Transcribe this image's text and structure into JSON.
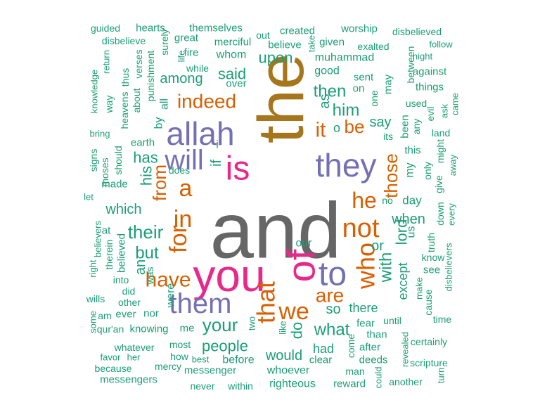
{
  "chart_data": {
    "type": "wordcloud",
    "palette": {
      "teal": "#1b9e77",
      "orange": "#d95f02",
      "purple": "#7570b3",
      "pink": "#e7298a",
      "gold": "#a6761d",
      "gray": "#666666"
    },
    "words": [
      {
        "text": "and",
        "color": "gray"
      },
      {
        "text": "the",
        "color": "gold"
      },
      {
        "text": "you",
        "color": "pink"
      },
      {
        "text": "is",
        "color": "pink"
      },
      {
        "text": "allah",
        "color": "purple"
      },
      {
        "text": "they",
        "color": "purple"
      },
      {
        "text": "of",
        "color": "pink"
      },
      {
        "text": "to",
        "color": "purple"
      },
      {
        "text": "will",
        "color": "purple"
      },
      {
        "text": "them",
        "color": "purple"
      },
      {
        "text": "not",
        "color": "orange"
      },
      {
        "text": "that",
        "color": "orange"
      },
      {
        "text": "we",
        "color": "orange"
      },
      {
        "text": "he",
        "color": "orange"
      },
      {
        "text": "who",
        "color": "orange"
      },
      {
        "text": "in",
        "color": "orange"
      },
      {
        "text": "for",
        "color": "orange"
      },
      {
        "text": "a",
        "color": "orange"
      },
      {
        "text": "have",
        "color": "orange"
      },
      {
        "text": "indeed",
        "color": "orange"
      },
      {
        "text": "it",
        "color": "orange"
      },
      {
        "text": "be",
        "color": "orange"
      },
      {
        "text": "are",
        "color": "orange"
      },
      {
        "text": "from",
        "color": "orange"
      },
      {
        "text": "those",
        "color": "orange"
      },
      {
        "text": "their",
        "color": "teal"
      },
      {
        "text": "your",
        "color": "teal"
      },
      {
        "text": "what",
        "color": "teal"
      },
      {
        "text": "people",
        "color": "teal"
      },
      {
        "text": "with",
        "color": "teal"
      },
      {
        "text": "him",
        "color": "teal"
      },
      {
        "text": "then",
        "color": "teal"
      },
      {
        "text": "but",
        "color": "teal"
      },
      {
        "text": "which",
        "color": "teal"
      },
      {
        "text": "has",
        "color": "teal"
      },
      {
        "text": "his",
        "color": "teal"
      },
      {
        "text": "said",
        "color": "teal"
      },
      {
        "text": "upon",
        "color": "teal"
      },
      {
        "text": "among",
        "color": "teal"
      },
      {
        "text": "so",
        "color": "teal"
      },
      {
        "text": "there",
        "color": "teal"
      },
      {
        "text": "lord",
        "color": "teal"
      },
      {
        "text": "when",
        "color": "teal"
      },
      {
        "text": "would",
        "color": "teal"
      },
      {
        "text": "had",
        "color": "teal"
      },
      {
        "text": "say",
        "color": "teal"
      },
      {
        "text": "if",
        "color": "teal"
      },
      {
        "text": "as",
        "color": "teal"
      },
      {
        "text": "or",
        "color": "teal"
      },
      {
        "text": "do",
        "color": "teal"
      },
      {
        "text": "an",
        "color": "teal"
      },
      {
        "text": "except",
        "color": "teal"
      },
      {
        "text": "guided",
        "color": "teal"
      },
      {
        "text": "hearts",
        "color": "teal"
      },
      {
        "text": "themselves",
        "color": "teal"
      },
      {
        "text": "created",
        "color": "teal"
      },
      {
        "text": "worship",
        "color": "teal"
      },
      {
        "text": "disbelieve",
        "color": "teal"
      },
      {
        "text": "great",
        "color": "teal"
      },
      {
        "text": "merciful",
        "color": "teal"
      },
      {
        "text": "out",
        "color": "teal"
      },
      {
        "text": "believe",
        "color": "teal"
      },
      {
        "text": "given",
        "color": "teal"
      },
      {
        "text": "exalted",
        "color": "teal"
      },
      {
        "text": "disbelieved",
        "color": "teal"
      },
      {
        "text": "follow",
        "color": "teal"
      },
      {
        "text": "fire",
        "color": "teal"
      },
      {
        "text": "whom",
        "color": "teal"
      },
      {
        "text": "muhammad",
        "color": "teal"
      },
      {
        "text": "night",
        "color": "teal"
      },
      {
        "text": "while",
        "color": "teal"
      },
      {
        "text": "good",
        "color": "teal"
      },
      {
        "text": "against",
        "color": "teal"
      },
      {
        "text": "over",
        "color": "teal"
      },
      {
        "text": "sent",
        "color": "teal"
      },
      {
        "text": "on",
        "color": "teal"
      },
      {
        "text": "things",
        "color": "teal"
      },
      {
        "text": "one",
        "color": "teal"
      },
      {
        "text": "may",
        "color": "teal"
      },
      {
        "text": "used",
        "color": "teal"
      },
      {
        "text": "its",
        "color": "teal"
      },
      {
        "text": "this",
        "color": "teal"
      },
      {
        "text": "been",
        "color": "teal"
      },
      {
        "text": "all",
        "color": "teal"
      },
      {
        "text": "by",
        "color": "teal"
      },
      {
        "text": "earth",
        "color": "teal"
      },
      {
        "text": "bring",
        "color": "teal"
      },
      {
        "text": "land",
        "color": "teal"
      },
      {
        "text": "does",
        "color": "teal"
      },
      {
        "text": "made",
        "color": "teal"
      },
      {
        "text": "day",
        "color": "teal"
      },
      {
        "text": "let",
        "color": "teal"
      },
      {
        "text": "no",
        "color": "teal"
      },
      {
        "text": "us",
        "color": "teal"
      },
      {
        "text": "our",
        "color": "teal"
      },
      {
        "text": "at",
        "color": "teal"
      },
      {
        "text": "believed",
        "color": "teal"
      },
      {
        "text": "into",
        "color": "teal"
      },
      {
        "text": "did",
        "color": "teal"
      },
      {
        "text": "was",
        "color": "teal"
      },
      {
        "text": "were",
        "color": "teal"
      },
      {
        "text": "wills",
        "color": "teal"
      },
      {
        "text": "other",
        "color": "teal"
      },
      {
        "text": "ever",
        "color": "teal"
      },
      {
        "text": "nor",
        "color": "teal"
      },
      {
        "text": "am",
        "color": "teal"
      },
      {
        "text": "knowing",
        "color": "teal"
      },
      {
        "text": "me",
        "color": "teal"
      },
      {
        "text": "qur'an",
        "color": "teal"
      },
      {
        "text": "fear",
        "color": "teal"
      },
      {
        "text": "until",
        "color": "teal"
      },
      {
        "text": "than",
        "color": "teal"
      },
      {
        "text": "after",
        "color": "teal"
      },
      {
        "text": "time",
        "color": "teal"
      },
      {
        "text": "certainly",
        "color": "teal"
      },
      {
        "text": "whatever",
        "color": "teal"
      },
      {
        "text": "most",
        "color": "teal"
      },
      {
        "text": "her",
        "color": "teal"
      },
      {
        "text": "favor",
        "color": "teal"
      },
      {
        "text": "how",
        "color": "teal"
      },
      {
        "text": "before",
        "color": "teal"
      },
      {
        "text": "clear",
        "color": "teal"
      },
      {
        "text": "deeds",
        "color": "teal"
      },
      {
        "text": "scripture",
        "color": "teal"
      },
      {
        "text": "because",
        "color": "teal"
      },
      {
        "text": "mercy",
        "color": "teal"
      },
      {
        "text": "best",
        "color": "teal"
      },
      {
        "text": "messenger",
        "color": "teal"
      },
      {
        "text": "whoever",
        "color": "teal"
      },
      {
        "text": "man",
        "color": "teal"
      },
      {
        "text": "messengers",
        "color": "teal"
      },
      {
        "text": "never",
        "color": "teal"
      },
      {
        "text": "within",
        "color": "teal"
      },
      {
        "text": "righteous",
        "color": "teal"
      },
      {
        "text": "reward",
        "color": "teal"
      },
      {
        "text": "another",
        "color": "teal"
      },
      {
        "text": "surely",
        "color": "teal"
      },
      {
        "text": "verses",
        "color": "teal"
      },
      {
        "text": "punishment",
        "color": "teal"
      },
      {
        "text": "about",
        "color": "teal"
      },
      {
        "text": "thus",
        "color": "teal"
      },
      {
        "text": "heavens",
        "color": "teal"
      },
      {
        "text": "way",
        "color": "teal"
      },
      {
        "text": "knowledge",
        "color": "teal"
      },
      {
        "text": "return",
        "color": "teal"
      },
      {
        "text": "life",
        "color": "teal"
      },
      {
        "text": "take",
        "color": "teal"
      },
      {
        "text": "between",
        "color": "teal"
      },
      {
        "text": "evil",
        "color": "teal"
      },
      {
        "text": "any",
        "color": "teal"
      },
      {
        "text": "ask",
        "color": "teal"
      },
      {
        "text": "came",
        "color": "teal"
      },
      {
        "text": "might",
        "color": "teal"
      },
      {
        "text": "give",
        "color": "teal"
      },
      {
        "text": "only",
        "color": "teal"
      },
      {
        "text": "away",
        "color": "teal"
      },
      {
        "text": "my",
        "color": "teal"
      },
      {
        "text": "down",
        "color": "teal"
      },
      {
        "text": "every",
        "color": "teal"
      },
      {
        "text": "truth",
        "color": "teal"
      },
      {
        "text": "see",
        "color": "teal"
      },
      {
        "text": "know",
        "color": "teal"
      },
      {
        "text": "make",
        "color": "teal"
      },
      {
        "text": "cause",
        "color": "teal"
      },
      {
        "text": "disbelievers",
        "color": "teal"
      },
      {
        "text": "revealed",
        "color": "teal"
      },
      {
        "text": "could",
        "color": "teal"
      },
      {
        "text": "come",
        "color": "teal"
      },
      {
        "text": "like",
        "color": "teal"
      },
      {
        "text": "two",
        "color": "teal"
      },
      {
        "text": "some",
        "color": "teal"
      },
      {
        "text": "right",
        "color": "teal"
      },
      {
        "text": "therein",
        "color": "teal"
      },
      {
        "text": "believers",
        "color": "teal"
      },
      {
        "text": "signs",
        "color": "teal"
      },
      {
        "text": "moses",
        "color": "teal"
      },
      {
        "text": "should",
        "color": "teal"
      },
      {
        "text": "turn",
        "color": "teal"
      },
      {
        "text": "i",
        "color": "teal"
      },
      {
        "text": "o",
        "color": "teal"
      }
    ]
  }
}
